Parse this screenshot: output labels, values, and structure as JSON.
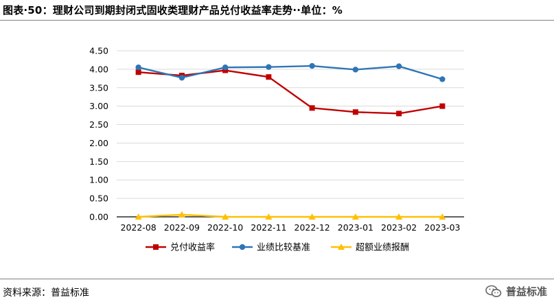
{
  "title": "图表·50：理财公司到期封闭式固收类理财产品兑付收益率走势··单位：%",
  "source": "资料来源：普益标准",
  "watermark": {
    "text": "普益标准",
    "icon": "wechat-icon"
  },
  "chart_data": {
    "type": "line",
    "categories": [
      "2022-08",
      "2022-09",
      "2022-10",
      "2022-11",
      "2022-12",
      "2023-01",
      "2023-02",
      "2023-03"
    ],
    "ylim": [
      0,
      4.5
    ],
    "yticks": [
      "0.00",
      "0.50",
      "1.00",
      "1.50",
      "2.00",
      "2.50",
      "3.00",
      "3.50",
      "4.00",
      "4.50"
    ],
    "grid": true,
    "legend_position": "bottom",
    "series": [
      {
        "name": "兑付收益率",
        "color": "#c00000",
        "marker": "square",
        "values": [
          3.92,
          3.83,
          3.97,
          3.79,
          2.95,
          2.84,
          2.8,
          3.0
        ]
      },
      {
        "name": "业绩比较基准",
        "color": "#2e75b6",
        "marker": "circle",
        "values": [
          4.05,
          3.77,
          4.05,
          4.06,
          4.09,
          3.99,
          4.08,
          3.73
        ]
      },
      {
        "name": "超额业绩报酬",
        "color": "#ffc000",
        "marker": "triangle",
        "values": [
          0.0,
          0.06,
          0.0,
          0.0,
          0.0,
          0.0,
          0.0,
          0.0
        ]
      }
    ]
  }
}
